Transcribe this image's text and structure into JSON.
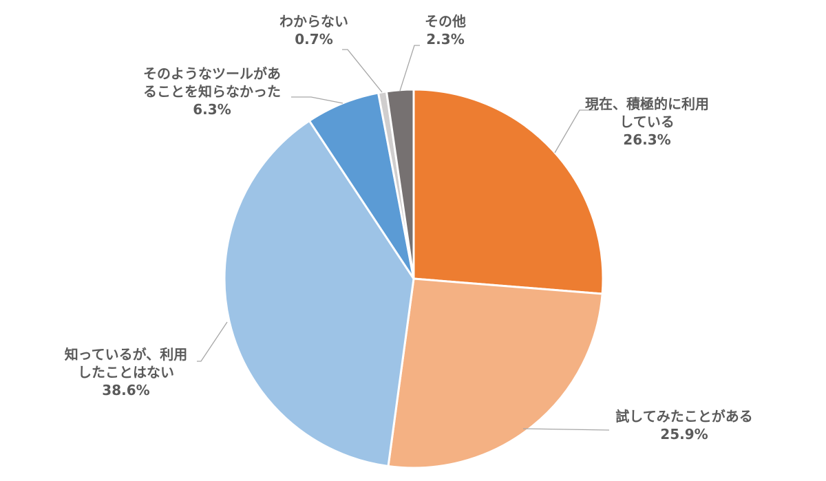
{
  "chart_data": {
    "type": "pie",
    "title": "",
    "start_angle_deg": 0,
    "direction": "clockwise",
    "slices": [
      {
        "label_lines": [
          "現在、積極的に利用",
          "している"
        ],
        "value": 26.3,
        "value_label": "26.3%",
        "color": "#ed7d31"
      },
      {
        "label_lines": [
          "試してみたことがある"
        ],
        "value": 25.9,
        "value_label": "25.9%",
        "color": "#f4b183"
      },
      {
        "label_lines": [
          "知っているが、利用",
          "したことはない"
        ],
        "value": 38.6,
        "value_label": "38.6%",
        "color": "#9dc3e6"
      },
      {
        "label_lines": [
          "そのようなツールがあ",
          "ることを知らなかった"
        ],
        "value": 6.3,
        "value_label": "6.3%",
        "color": "#5b9bd5"
      },
      {
        "label_lines": [
          "わからない"
        ],
        "value": 0.7,
        "value_label": "0.7%",
        "color": "#d0cece"
      },
      {
        "label_lines": [
          "その他"
        ],
        "value": 2.3,
        "value_label": "2.3%",
        "color": "#767171"
      }
    ]
  }
}
